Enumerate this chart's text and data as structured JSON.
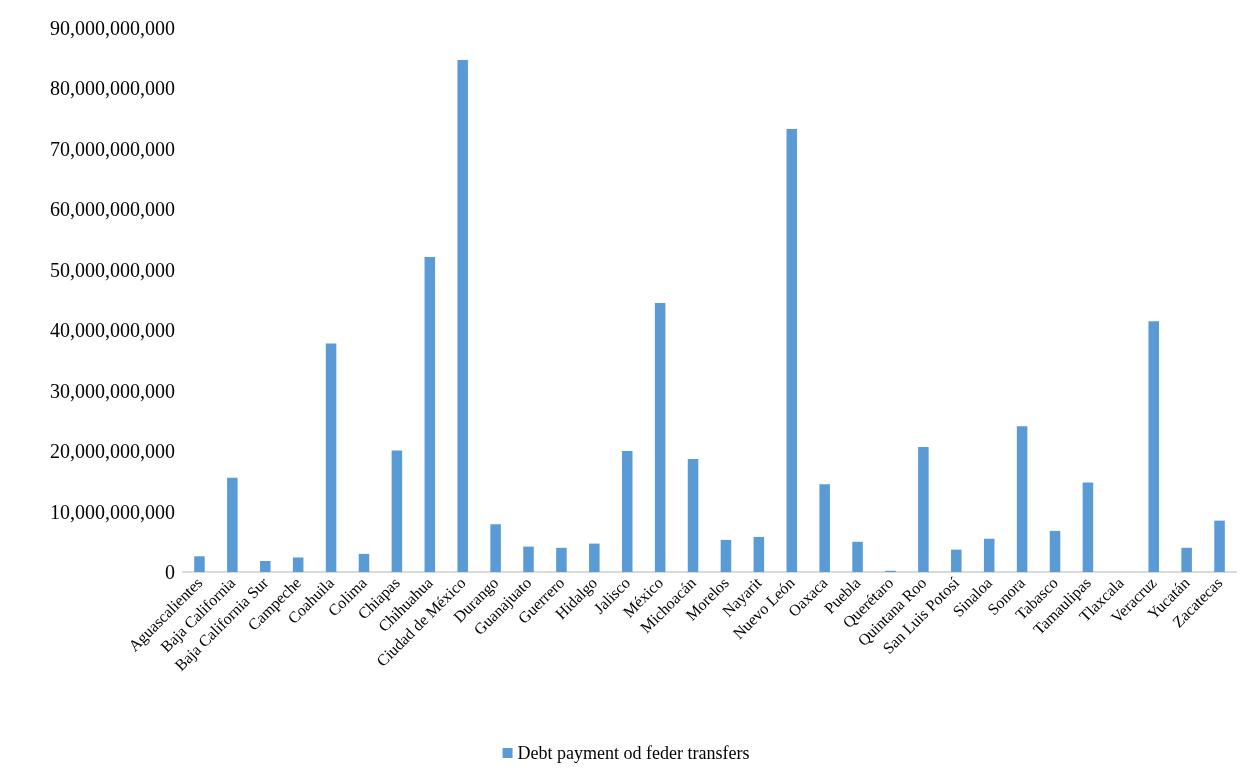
{
  "chart_data": {
    "type": "bar",
    "categories": [
      "Aguascalientes",
      "Baja California",
      "Baja California Sur",
      "Campeche",
      "Coahuila",
      "Colima",
      "Chiapas",
      "Chihuahua",
      "Ciudad de México",
      "Durango",
      "Guanajuato",
      "Guerrero",
      "Hidalgo",
      "Jalisco",
      "México",
      "Michoacán",
      "Morelos",
      "Nayarit",
      "Nuevo León",
      "Oaxaca",
      "Puebla",
      "Querétaro",
      "Quintana Roo",
      "San Luis Potosí",
      "Sinaloa",
      "Sonora",
      "Tabasco",
      "Tamaulipas",
      "Tlaxcala",
      "Veracruz",
      "Yucatán",
      "Zacatecas"
    ],
    "series": [
      {
        "name": "Debt payment od feder transfers",
        "color": "#5b9bd5",
        "values": [
          2600000000,
          15600000000,
          1800000000,
          2400000000,
          37800000000,
          3000000000,
          20100000000,
          52100000000,
          84700000000,
          7900000000,
          4200000000,
          4000000000,
          4700000000,
          20000000000,
          44500000000,
          18700000000,
          5300000000,
          5800000000,
          73300000000,
          14500000000,
          5000000000,
          200000000,
          20700000000,
          3700000000,
          5500000000,
          24100000000,
          6800000000,
          14800000000,
          0,
          41500000000,
          4000000000,
          8500000000
        ]
      }
    ],
    "ylim": [
      0,
      90000000000
    ],
    "yticks": [
      0,
      {
        "value": 10000000000,
        "label": "10,000,000,000"
      },
      {
        "value": 20000000000,
        "label": "20,000,000,000"
      },
      {
        "value": 30000000000,
        "label": "30,000,000,000"
      },
      {
        "value": 40000000000,
        "label": "40,000,000,000"
      },
      {
        "value": 50000000000,
        "label": "50,000,000,000"
      },
      {
        "value": 60000000000,
        "label": "60,000,000,000"
      },
      {
        "value": 70000000000,
        "label": "70,000,000,000"
      },
      {
        "value": 80000000000,
        "label": "80,000,000,000"
      },
      {
        "value": 90000000000,
        "label": "90,000,000,000"
      }
    ],
    "grid": false,
    "legend": "bottom"
  }
}
